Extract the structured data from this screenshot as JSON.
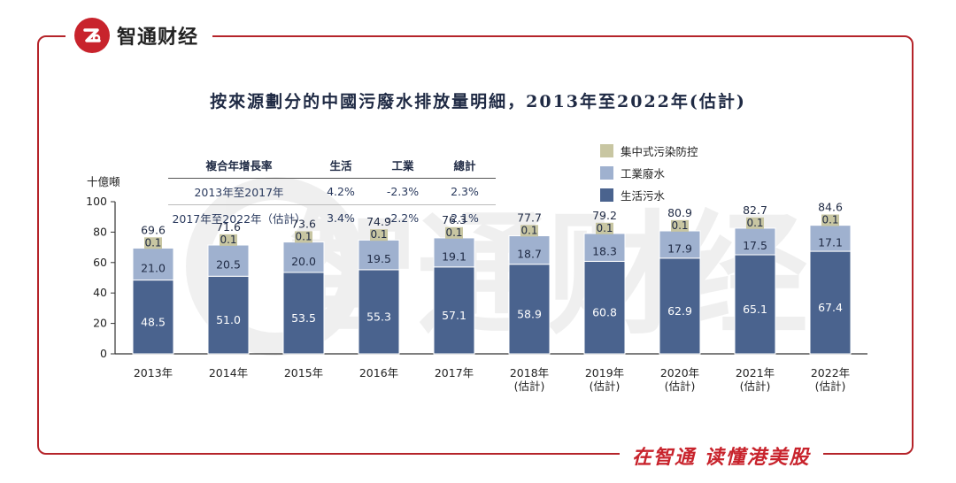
{
  "branding": {
    "logo_text": "智通财经",
    "slogan": "在智通 读懂港美股",
    "watermark": "智通财经"
  },
  "colors": {
    "frame": "#b5242a",
    "brand_red": "#c8232c",
    "domestic": "#4a638e",
    "industrial": "#9fb1cf",
    "centralized": "#c8c6a2",
    "title": "#1f2a44"
  },
  "growth_table": {
    "headers": [
      "複合年增長率",
      "生活",
      "工業",
      "總計"
    ],
    "rows": [
      [
        "2013年至2017年",
        "4.2%",
        "-2.3%",
        "2.3%"
      ],
      [
        "2017年至2022年（估計）",
        "3.4%",
        "-2.2%",
        "2.1%"
      ]
    ]
  },
  "chart_data": {
    "type": "bar",
    "stacked": true,
    "title": "按來源劃分的中國污廢水排放量明細，2013年至2022年(估計)",
    "ylabel": "十億噸",
    "ylim": [
      0,
      100
    ],
    "yticks": [
      0,
      20,
      40,
      60,
      80,
      100
    ],
    "categories": [
      "2013年",
      "2014年",
      "2015年",
      "2016年",
      "2017年",
      "2018年\n(估計)",
      "2019年\n(估計)",
      "2020年\n(估計)",
      "2021年\n(估計)",
      "2022年\n(估計)"
    ],
    "series": [
      {
        "name": "生活污水",
        "values": [
          48.5,
          51.0,
          53.5,
          55.3,
          57.1,
          58.9,
          60.8,
          62.9,
          65.1,
          67.4
        ],
        "labels": [
          "48.5",
          "51.0",
          "53.5",
          "55.3",
          "57.1",
          "58.9",
          "60.8",
          "62.9",
          "65.1",
          "67.4"
        ]
      },
      {
        "name": "工業廢水",
        "values": [
          21.0,
          20.5,
          20.0,
          19.5,
          19.1,
          18.7,
          18.3,
          17.9,
          17.5,
          17.1
        ],
        "labels": [
          "21.0",
          "20.5",
          "20.0",
          "19.5",
          "19.1",
          "18.7",
          "18.3",
          "17.9",
          "17.5",
          "17.1"
        ]
      },
      {
        "name": "集中式污染防控",
        "values": [
          0.1,
          0.1,
          0.1,
          0.1,
          0.1,
          0.1,
          0.1,
          0.1,
          0.1,
          0.1
        ],
        "labels": [
          "0.1",
          "0.1",
          "0.1",
          "0.1",
          "0.1",
          "0.1",
          "0.1",
          "0.1",
          "0.1",
          "0.1"
        ]
      }
    ],
    "totals": [
      "69.6",
      "71.6",
      "73.6",
      "74.9",
      "76.3",
      "77.7",
      "79.2",
      "80.9",
      "82.7",
      "84.6"
    ],
    "legend": [
      "集中式污染防控",
      "工業廢水",
      "生活污水"
    ],
    "legend_position": "top-right",
    "grid": false
  }
}
